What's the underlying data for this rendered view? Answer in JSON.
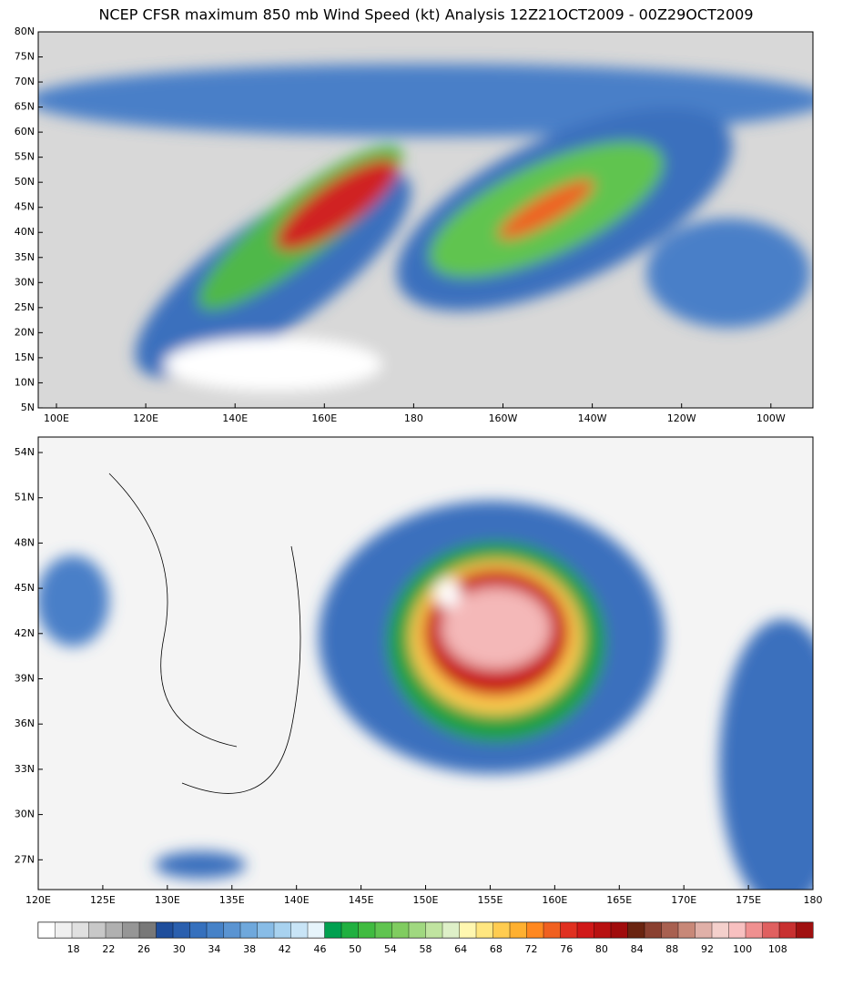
{
  "title": "NCEP CFSR maximum 850 mb Wind Speed (kt) Analysis 12Z21OCT2009 - 00Z29OCT2009",
  "maps": [
    {
      "lat_ticks": [
        "80N",
        "75N",
        "70N",
        "65N",
        "60N",
        "55N",
        "50N",
        "45N",
        "40N",
        "35N",
        "30N",
        "25N",
        "20N",
        "15N",
        "10N",
        "5N"
      ],
      "lon_ticks": [
        "100E",
        "120E",
        "140E",
        "160E",
        "180",
        "160W",
        "140W",
        "120W",
        "100W"
      ]
    },
    {
      "lat_ticks": [
        "54N",
        "51N",
        "48N",
        "45N",
        "42N",
        "39N",
        "36N",
        "33N",
        "30N",
        "27N"
      ],
      "lon_ticks": [
        "120E",
        "125E",
        "130E",
        "135E",
        "140E",
        "145E",
        "150E",
        "155E",
        "160E",
        "165E",
        "170E",
        "175E",
        "180"
      ]
    }
  ],
  "colorbar": {
    "colors": [
      "#ffffff",
      "#f0f0f0",
      "#e0e0e0",
      "#c8c8c8",
      "#b0b0b0",
      "#969696",
      "#787878",
      "#1f4e9c",
      "#2a5fae",
      "#3570bd",
      "#4682c8",
      "#5a94d2",
      "#6fa8dc",
      "#88bce6",
      "#a8d2ef",
      "#c8e4f6",
      "#e6f4fb",
      "#00a050",
      "#20b040",
      "#40bb40",
      "#60c450",
      "#80cc60",
      "#a0d880",
      "#c0e4a0",
      "#def0c8",
      "#fff7b0",
      "#ffe680",
      "#ffcc50",
      "#ffb030",
      "#ff8820",
      "#f06020",
      "#e03020",
      "#d01818",
      "#b81010",
      "#a00c0c",
      "#6a2410",
      "#8a4030",
      "#a86050",
      "#c88878",
      "#e0b0a8",
      "#f4d0cc",
      "#f8c0c0",
      "#f09090",
      "#e06060",
      "#c83030",
      "#a01010"
    ],
    "ticks": [
      18,
      22,
      26,
      30,
      34,
      38,
      42,
      46,
      50,
      54,
      58,
      64,
      68,
      72,
      76,
      80,
      84,
      88,
      92,
      100,
      108
    ]
  }
}
